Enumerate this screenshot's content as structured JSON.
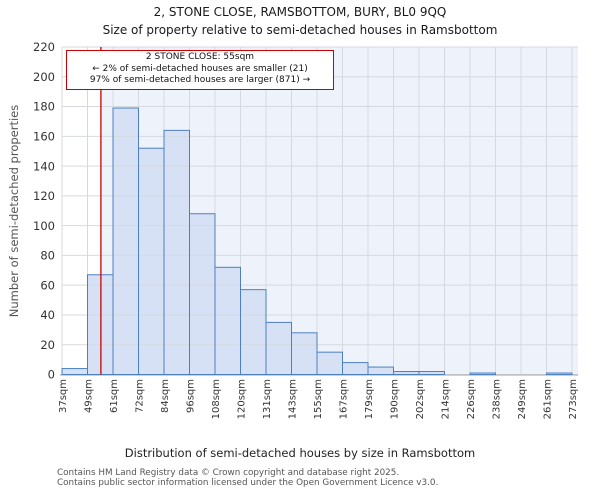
{
  "title": "2, STONE CLOSE, RAMSBOTTOM, BURY, BL0 9QQ",
  "subtitle": "Size of property relative to semi-detached houses in Ramsbottom",
  "annotation": {
    "line1": "2 STONE CLOSE: 55sqm",
    "line2": "← 2% of semi-detached houses are smaller (21)",
    "line3": "97% of semi-detached houses are larger (871) →"
  },
  "chart_data": {
    "type": "bar",
    "title": "2, STONE CLOSE, RAMSBOTTOM, BURY, BL0 9QQ",
    "subtitle": "Size of property relative to semi-detached houses in Ramsbottom",
    "xlabel": "Distribution of semi-detached houses by size in Ramsbottom",
    "ylabel": "Number of semi-detached properties",
    "x_tick_labels": [
      "37sqm",
      "49sqm",
      "61sqm",
      "72sqm",
      "84sqm",
      "96sqm",
      "108sqm",
      "120sqm",
      "131sqm",
      "143sqm",
      "155sqm",
      "167sqm",
      "179sqm",
      "190sqm",
      "202sqm",
      "214sqm",
      "226sqm",
      "238sqm",
      "249sqm",
      "261sqm",
      "273sqm"
    ],
    "bin_edges_sqm": [
      37,
      49,
      61,
      72,
      84,
      96,
      108,
      120,
      131,
      143,
      155,
      167,
      179,
      190,
      202,
      214,
      226,
      238,
      249,
      261,
      273
    ],
    "values": [
      4,
      67,
      179,
      152,
      164,
      108,
      72,
      57,
      35,
      28,
      15,
      8,
      5,
      2,
      2,
      0,
      1,
      0,
      0,
      1
    ],
    "y_ticks": [
      0,
      20,
      40,
      60,
      80,
      100,
      120,
      140,
      160,
      180,
      200,
      220
    ],
    "ylim": [
      0,
      220
    ],
    "marker_value_sqm": 55,
    "grid": true,
    "legend": "none",
    "colors": {
      "bar_fill": "#d6e1f5",
      "bar_edge": "#4d80c0",
      "marker_line": "#cc0000",
      "shade_right_of_marker": "#edf2fb",
      "gridline": "#d6d9df",
      "axis_line": "#b5b5b5"
    }
  },
  "footer": {
    "line1": "Contains HM Land Registry data © Crown copyright and database right 2025.",
    "line2": "Contains public sector information licensed under the Open Government Licence v3.0."
  }
}
